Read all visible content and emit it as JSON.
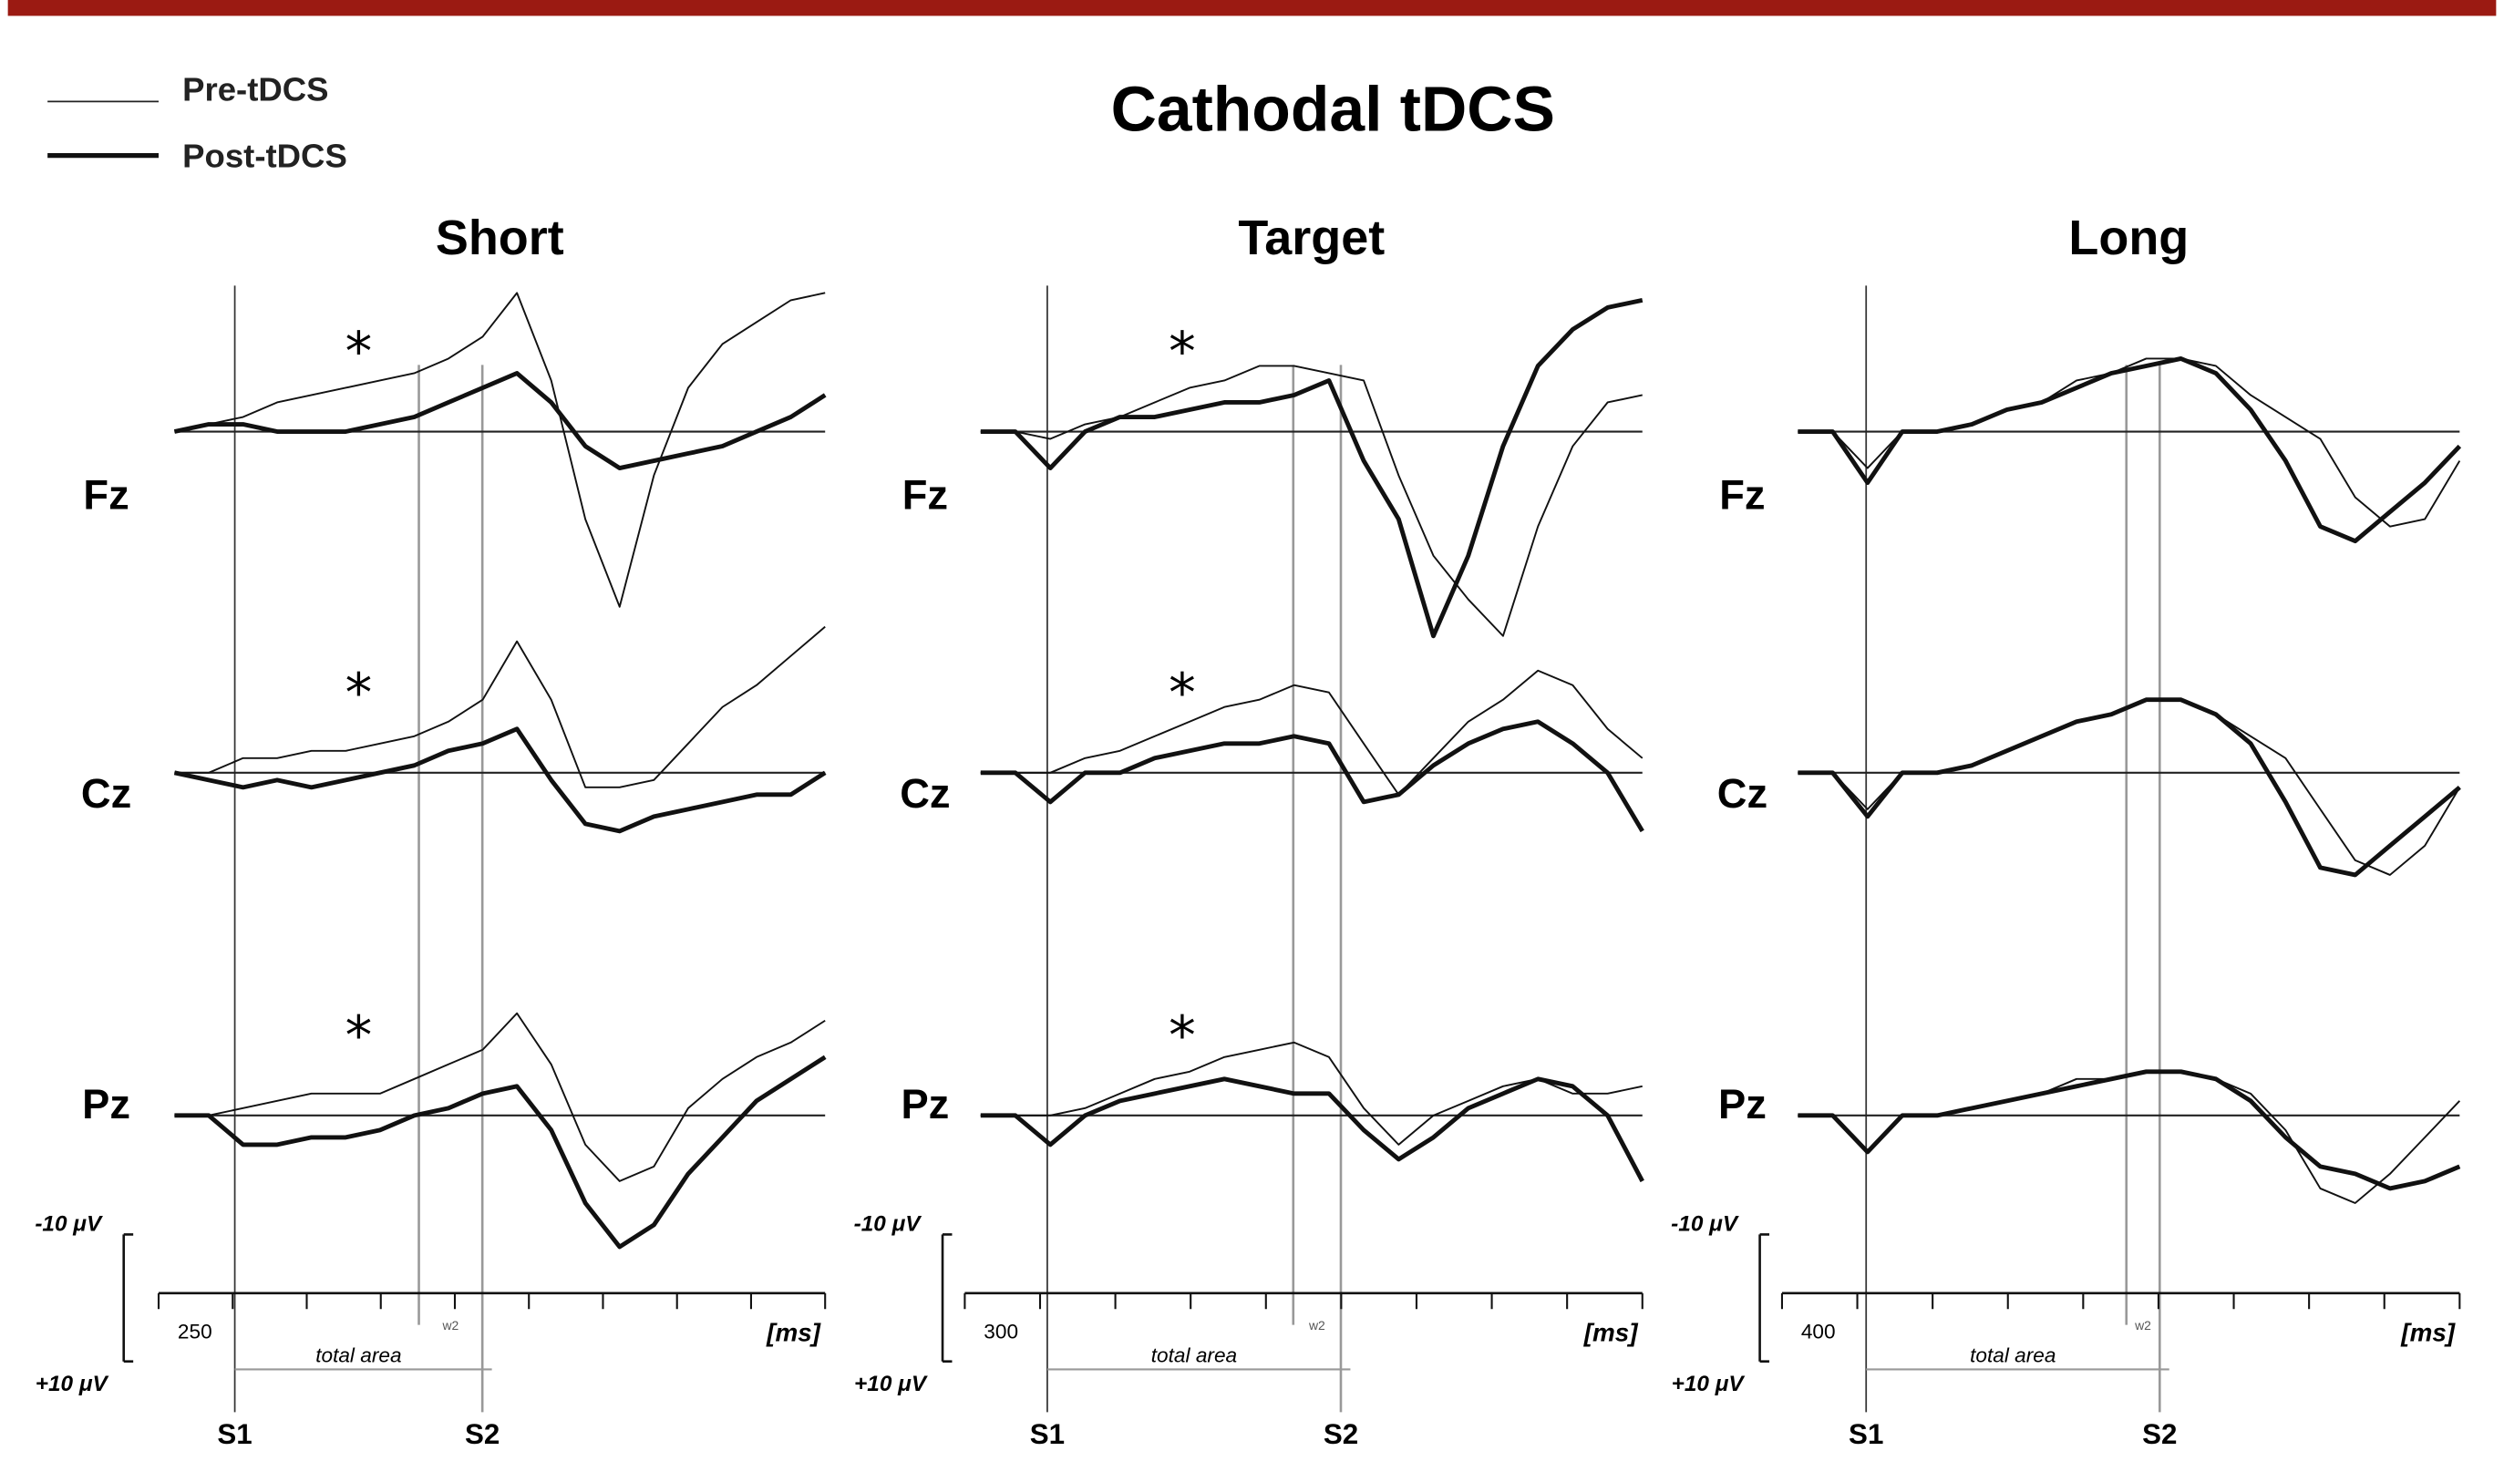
{
  "title": "Cathodal tDCS",
  "legend": [
    {
      "name": "Pre-tDCS"
    },
    {
      "name": "Post-tDCS"
    }
  ],
  "panels": [
    {
      "title": "Short",
      "start": "250",
      "unit": "[ms]",
      "window": "w2",
      "area": "total area",
      "s1": "S1",
      "s2": "S2",
      "scale": [
        "-10 μV",
        "+10 μV"
      ],
      "channels": [
        {
          "name": "Fz",
          "asterisk": "*",
          "series": [
            {
              "values": [
                0,
                -1,
                -2,
                -4,
                -5,
                -6,
                -7,
                -8,
                -10,
                -13,
                -19,
                -7,
                12,
                24,
                6,
                -6,
                -12,
                -15,
                -18,
                -19
              ]
            },
            {
              "values": [
                0,
                -1,
                -1,
                0,
                0,
                0,
                -1,
                -2,
                -4,
                -6,
                -8,
                -4,
                2,
                5,
                4,
                3,
                2,
                0,
                -2,
                -5
              ]
            }
          ]
        },
        {
          "name": "Cz",
          "asterisk": "*",
          "series": [
            {
              "values": [
                0,
                0,
                -2,
                -2,
                -3,
                -3,
                -4,
                -5,
                -7,
                -10,
                -18,
                -10,
                2,
                2,
                1,
                -4,
                -9,
                -12,
                -16,
                -20
              ]
            },
            {
              "values": [
                0,
                1,
                2,
                1,
                2,
                1,
                0,
                -1,
                -3,
                -4,
                -6,
                1,
                7,
                8,
                6,
                5,
                4,
                3,
                3,
                0
              ]
            }
          ]
        },
        {
          "name": "Pz",
          "asterisk": "*",
          "series": [
            {
              "values": [
                0,
                0,
                -1,
                -2,
                -3,
                -3,
                -3,
                -5,
                -7,
                -9,
                -14,
                -7,
                4,
                9,
                7,
                -1,
                -5,
                -8,
                -10,
                -13
              ]
            },
            {
              "values": [
                0,
                0,
                4,
                4,
                3,
                3,
                2,
                0,
                -1,
                -3,
                -4,
                2,
                12,
                18,
                15,
                8,
                3,
                -2,
                -5,
                -8
              ]
            }
          ]
        }
      ]
    },
    {
      "title": "Target",
      "start": "300",
      "unit": "[ms]",
      "window": "w2",
      "area": "total area",
      "s1": "S1",
      "s2": "S2",
      "scale": [
        "-10 μV",
        "+10 μV"
      ],
      "channels": [
        {
          "name": "Fz",
          "asterisk": "*",
          "series": [
            {
              "values": [
                0,
                0,
                1,
                -1,
                -2,
                -4,
                -6,
                -7,
                -9,
                -9,
                -8,
                -7,
                6,
                17,
                23,
                28,
                13,
                2,
                -4,
                -5
              ]
            },
            {
              "values": [
                0,
                0,
                5,
                0,
                -2,
                -2,
                -3,
                -4,
                -4,
                -5,
                -7,
                4,
                12,
                28,
                17,
                2,
                -9,
                -14,
                -17,
                -18
              ]
            }
          ]
        },
        {
          "name": "Cz",
          "asterisk": "*",
          "series": [
            {
              "values": [
                0,
                0,
                0,
                -2,
                -3,
                -5,
                -7,
                -9,
                -10,
                -12,
                -11,
                -4,
                3,
                -2,
                -7,
                -10,
                -14,
                -12,
                -6,
                -2
              ]
            },
            {
              "values": [
                0,
                0,
                4,
                0,
                0,
                -2,
                -3,
                -4,
                -4,
                -5,
                -4,
                4,
                3,
                -1,
                -4,
                -6,
                -7,
                -4,
                0,
                8
              ]
            }
          ]
        },
        {
          "name": "Pz",
          "asterisk": "*",
          "series": [
            {
              "values": [
                0,
                0,
                0,
                -1,
                -3,
                -5,
                -6,
                -8,
                -9,
                -10,
                -8,
                -1,
                4,
                0,
                -2,
                -4,
                -5,
                -3,
                -3,
                -4
              ]
            },
            {
              "values": [
                0,
                0,
                4,
                0,
                -2,
                -3,
                -4,
                -5,
                -4,
                -3,
                -3,
                2,
                6,
                3,
                -1,
                -3,
                -5,
                -4,
                0,
                9
              ]
            }
          ]
        }
      ]
    },
    {
      "title": "Long",
      "start": "400",
      "unit": "[ms]",
      "window": "w2",
      "area": "total area",
      "s1": "S1",
      "s2": "S2",
      "scale": [
        "-10 μV",
        "+10 μV"
      ],
      "channels": [
        {
          "name": "Fz",
          "series": [
            {
              "values": [
                0,
                0,
                5,
                0,
                0,
                -1,
                -3,
                -4,
                -7,
                -8,
                -10,
                -10,
                -9,
                -5,
                -2,
                1,
                9,
                13,
                12,
                4
              ]
            },
            {
              "values": [
                0,
                0,
                7,
                0,
                0,
                -1,
                -3,
                -4,
                -6,
                -8,
                -9,
                -10,
                -8,
                -3,
                4,
                13,
                15,
                11,
                7,
                2
              ]
            }
          ]
        },
        {
          "name": "Cz",
          "series": [
            {
              "values": [
                0,
                0,
                5,
                0,
                0,
                -1,
                -3,
                -5,
                -7,
                -8,
                -10,
                -10,
                -8,
                -5,
                -2,
                5,
                12,
                14,
                10,
                2
              ]
            },
            {
              "values": [
                0,
                0,
                6,
                0,
                0,
                -1,
                -3,
                -5,
                -7,
                -8,
                -10,
                -10,
                -8,
                -4,
                4,
                13,
                14,
                10,
                6,
                2
              ]
            }
          ]
        },
        {
          "name": "Pz",
          "series": [
            {
              "values": [
                0,
                0,
                5,
                0,
                0,
                -1,
                -2,
                -3,
                -5,
                -5,
                -6,
                -6,
                -5,
                -3,
                2,
                10,
                12,
                8,
                3,
                -2
              ]
            },
            {
              "values": [
                0,
                0,
                5,
                0,
                0,
                -1,
                -2,
                -3,
                -4,
                -5,
                -6,
                -6,
                -5,
                -2,
                3,
                7,
                8,
                10,
                9,
                7
              ]
            }
          ]
        }
      ]
    }
  ]
}
